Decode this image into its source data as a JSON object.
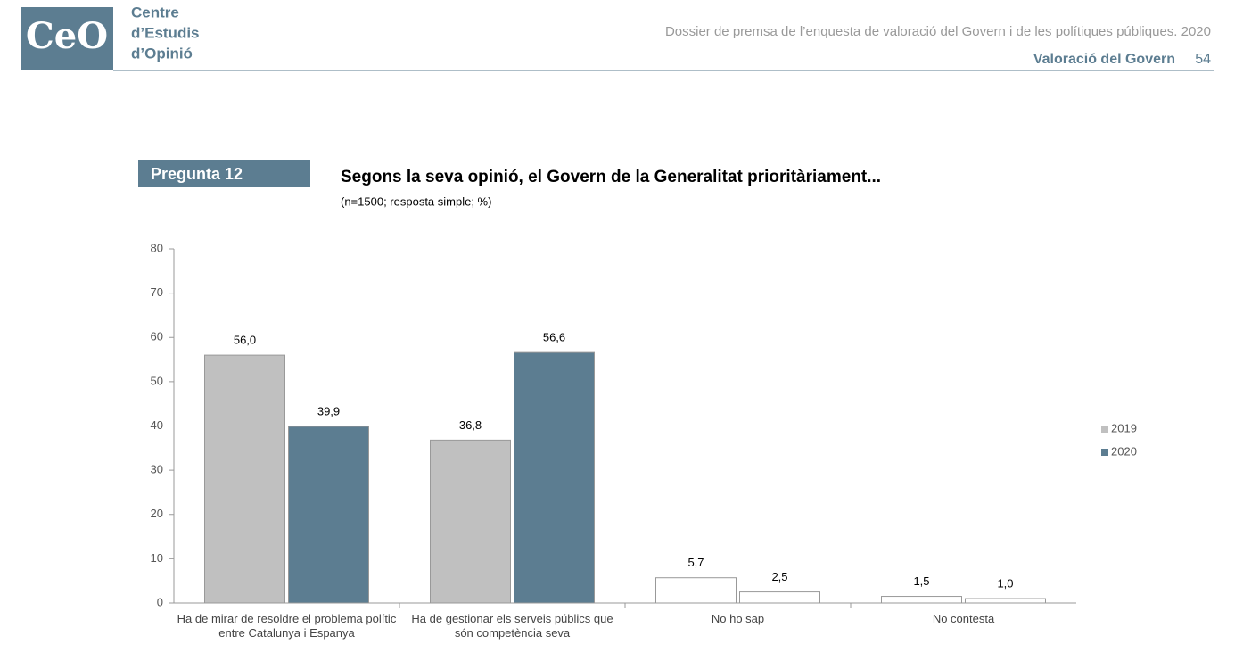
{
  "header": {
    "logo": "CeO",
    "org_lines": [
      "Centre",
      "d’Estudis",
      "d’Opinió"
    ],
    "document": "Dossier de premsa de l’enquesta de valoració del Govern i de les polítiques públiques. 2020",
    "section": "Valoració del Govern",
    "page": "54"
  },
  "question": "Pregunta 12",
  "chart_data": {
    "type": "bar",
    "title": "Segons la seva opinió, el Govern de la Generalitat prioritàriament...",
    "subtitle": "(n=1500; resposta simple; %)",
    "categories": [
      "Ha de mirar de resoldre el problema polític entre Catalunya i Espanya",
      "Ha de gestionar els serveis públics que són competència seva",
      "No ho sap",
      "No contesta"
    ],
    "series": [
      {
        "name": "2019",
        "color": "#c0c0c0",
        "point_colors": [
          "#c0c0c0",
          "#c0c0c0",
          "#ffffff",
          "#ffffff"
        ],
        "values": [
          56.0,
          36.8,
          5.7,
          1.5
        ],
        "value_labels": [
          "56,0",
          "36,8",
          "5,7",
          "1,5"
        ]
      },
      {
        "name": "2020",
        "color": "#5c7d91",
        "point_colors": [
          "#5c7d91",
          "#5c7d91",
          "#ffffff",
          "#ffffff"
        ],
        "values": [
          39.9,
          56.6,
          2.5,
          1.0
        ],
        "value_labels": [
          "39,9",
          "56,6",
          "2,5",
          "1,0"
        ]
      }
    ],
    "ylim": [
      0,
      80
    ],
    "yticks": [
      0,
      10,
      20,
      30,
      40,
      50,
      60,
      70,
      80
    ],
    "grid": false,
    "legend": "right"
  }
}
